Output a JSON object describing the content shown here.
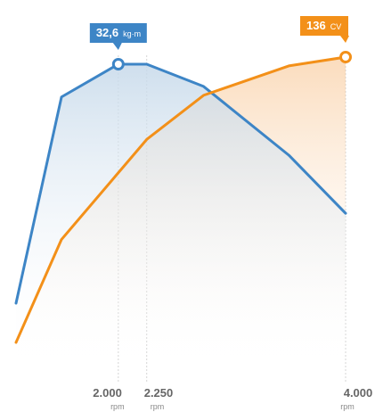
{
  "chart_data": {
    "type": "line",
    "x_unit": "rpm",
    "grid": false,
    "series": [
      {
        "id": "torque",
        "color": "#3d85c6",
        "peak_value": "32,6",
        "peak_unit": "kg·m",
        "points": [
          [
            1100,
            10.0
          ],
          [
            1500,
            29.5
          ],
          [
            2000,
            32.6
          ],
          [
            2250,
            32.6
          ],
          [
            2750,
            30.5
          ],
          [
            3500,
            24.0
          ],
          [
            4000,
            18.5
          ]
        ]
      },
      {
        "id": "power",
        "color": "#f39019",
        "peak_value": "136",
        "peak_unit": "CV",
        "points": [
          [
            1100,
            39.0
          ],
          [
            1500,
            74.0
          ],
          [
            2250,
            108.0
          ],
          [
            2750,
            123.0
          ],
          [
            3500,
            133.0
          ],
          [
            4000,
            136.0
          ]
        ]
      }
    ],
    "x_ticks": [
      {
        "value": 2000,
        "label": "2.000",
        "unit": "rpm"
      },
      {
        "value": 2250,
        "label": "2.250",
        "unit": "rpm"
      },
      {
        "value": 4000,
        "label": "4.000",
        "unit": "rpm"
      }
    ]
  }
}
